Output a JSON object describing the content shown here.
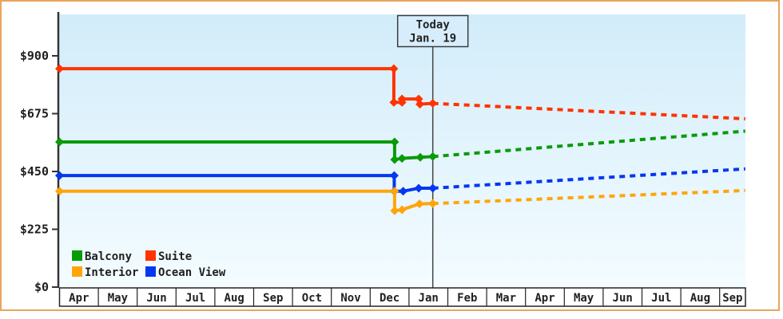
{
  "frame": {
    "border_color": "#e8a55c",
    "background": "#ffffff"
  },
  "chart_data": {
    "type": "line",
    "title": "",
    "grid": false,
    "plot_background": {
      "top": "#d2ecfa",
      "bottom": "#f4fcff"
    },
    "y_axis": {
      "tick_labels": [
        "$0",
        "$225",
        "$450",
        "$675",
        "$900"
      ],
      "tick_values": [
        0,
        225,
        450,
        675,
        900
      ],
      "range": [
        0,
        1060
      ]
    },
    "x_axis": {
      "categories": [
        "Apr",
        "May",
        "Jun",
        "Jul",
        "Aug",
        "Sep",
        "Oct",
        "Nov",
        "Dec",
        "Jan",
        "Feb",
        "Mar",
        "Apr",
        "May",
        "Jun",
        "Jul",
        "Aug",
        "Sep"
      ]
    },
    "today_marker": {
      "line1": "Today",
      "line2": "Jan. 19",
      "position_months": 9.613
    },
    "series": [
      {
        "name": "Suite",
        "color": "#ff3300",
        "solid_points_month_value": [
          [
            0,
            850
          ],
          [
            8.61,
            850
          ],
          [
            8.61,
            719
          ],
          [
            8.82,
            719
          ],
          [
            8.82,
            732
          ],
          [
            9.25,
            732
          ],
          [
            9.28,
            712
          ],
          [
            9.613,
            715
          ]
        ],
        "projection_points_month_value": [
          [
            9.613,
            715
          ],
          [
            17.66,
            655
          ]
        ]
      },
      {
        "name": "Balcony",
        "color": "#089b08",
        "solid_points_month_value": [
          [
            0,
            565
          ],
          [
            8.63,
            565
          ],
          [
            8.63,
            496
          ],
          [
            8.82,
            501
          ],
          [
            9.29,
            505
          ],
          [
            9.613,
            508
          ]
        ],
        "projection_points_month_value": [
          [
            9.613,
            508
          ],
          [
            17.66,
            607
          ]
        ]
      },
      {
        "name": "Ocean View",
        "color": "#0437f0",
        "solid_points_month_value": [
          [
            0,
            434
          ],
          [
            8.62,
            434
          ],
          [
            8.62,
            373
          ],
          [
            8.85,
            373
          ],
          [
            9.25,
            385
          ],
          [
            9.613,
            385
          ]
        ],
        "projection_points_month_value": [
          [
            9.613,
            385
          ],
          [
            17.66,
            460
          ]
        ]
      },
      {
        "name": "Interior",
        "color": "#ffa50a",
        "solid_points_month_value": [
          [
            0,
            373
          ],
          [
            8.63,
            373
          ],
          [
            8.63,
            297
          ],
          [
            8.82,
            301
          ],
          [
            9.27,
            324
          ],
          [
            9.613,
            325
          ]
        ],
        "projection_points_month_value": [
          [
            9.613,
            325
          ],
          [
            17.66,
            376
          ]
        ]
      }
    ],
    "legend": {
      "position": "bottom-left-inside",
      "items": [
        {
          "label": "Balcony",
          "color": "#089b08"
        },
        {
          "label": "Suite",
          "color": "#ff3300"
        },
        {
          "label": "Interior",
          "color": "#ffa50a"
        },
        {
          "label": "Ocean View",
          "color": "#0437f0"
        }
      ]
    }
  }
}
